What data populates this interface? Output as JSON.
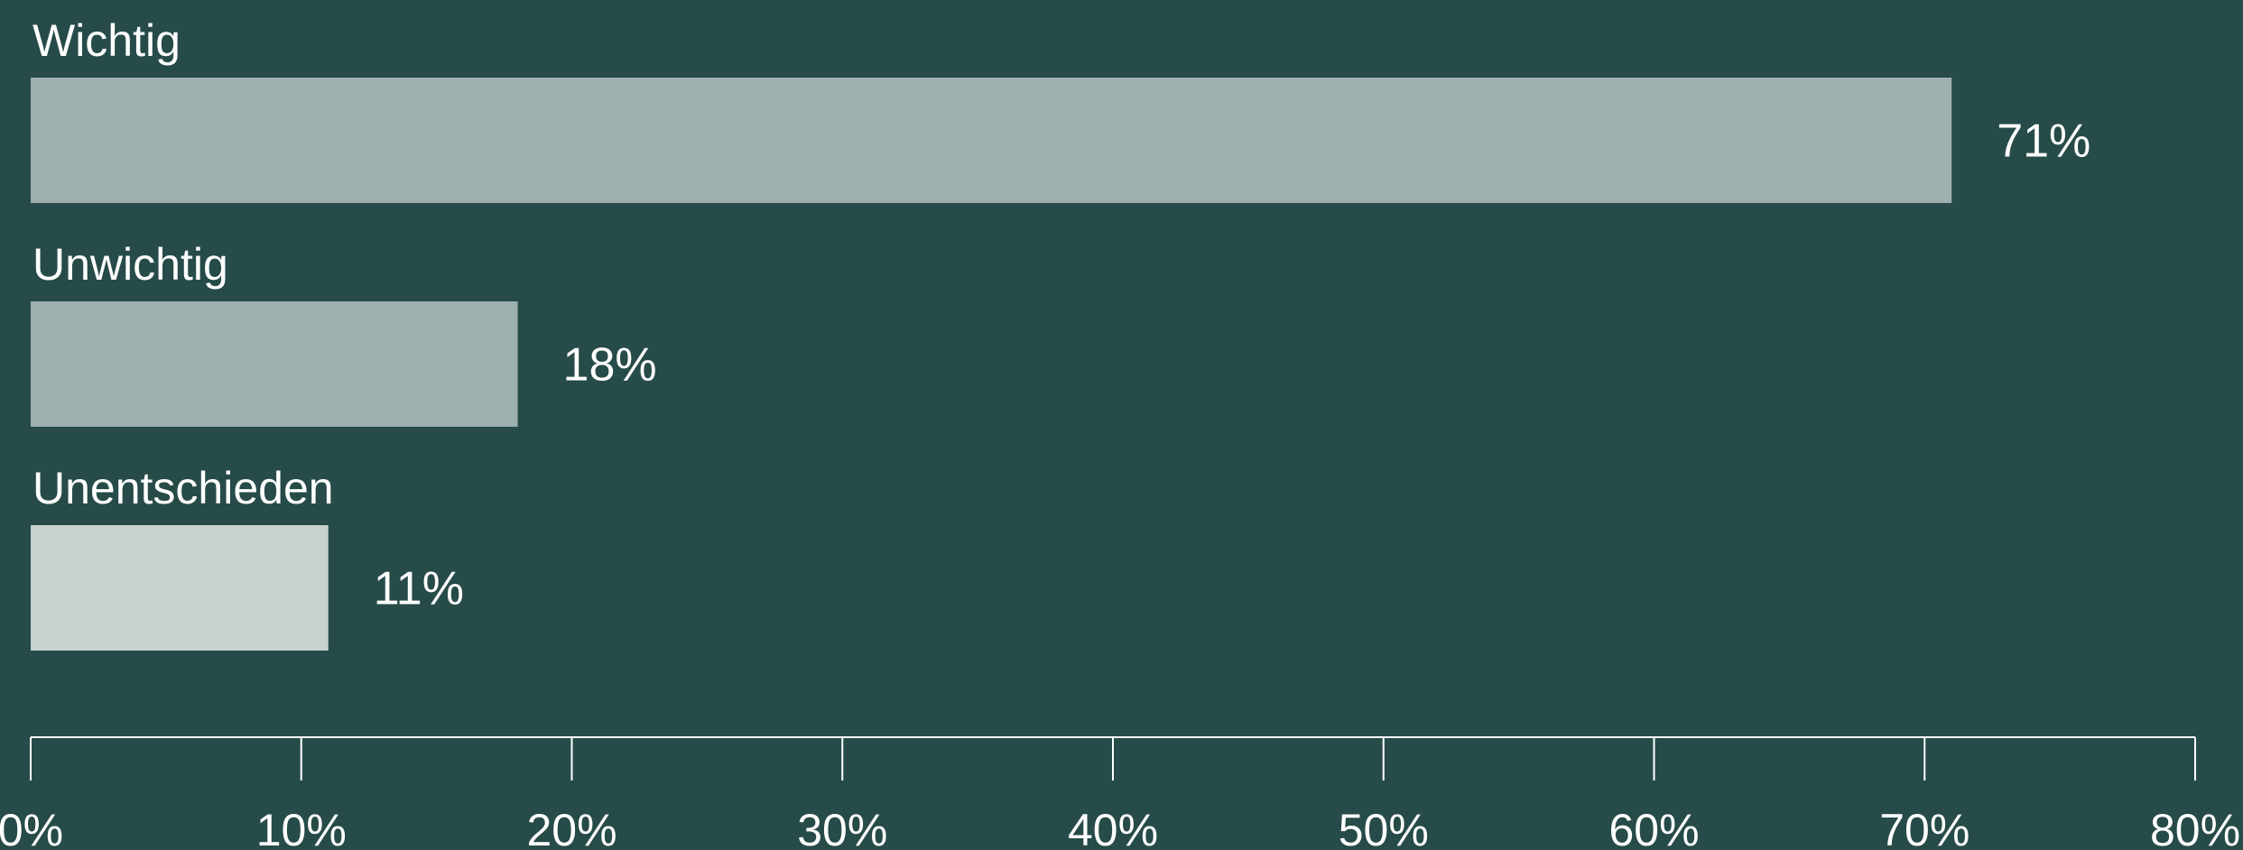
{
  "chart_data": {
    "type": "bar",
    "orientation": "horizontal",
    "categories": [
      "Wichtig",
      "Unwichtig",
      "Unentschieden"
    ],
    "values": [
      71,
      18,
      11
    ],
    "value_labels": [
      "71%",
      "18%",
      "11%"
    ],
    "colors": [
      "#9eb0ae",
      "#9eb0ae",
      "#c9d0d0"
    ],
    "xlim": [
      0,
      80
    ],
    "x_ticks": [
      0,
      10,
      20,
      30,
      40,
      50,
      60,
      70,
      80
    ],
    "x_tick_labels": [
      "0%",
      "10%",
      "20%",
      "30%",
      "40%",
      "50%",
      "60%",
      "70%",
      "80%"
    ],
    "grid": false,
    "legend": "none"
  },
  "colors": {
    "background": "#264b49",
    "text": "#ffffff"
  }
}
